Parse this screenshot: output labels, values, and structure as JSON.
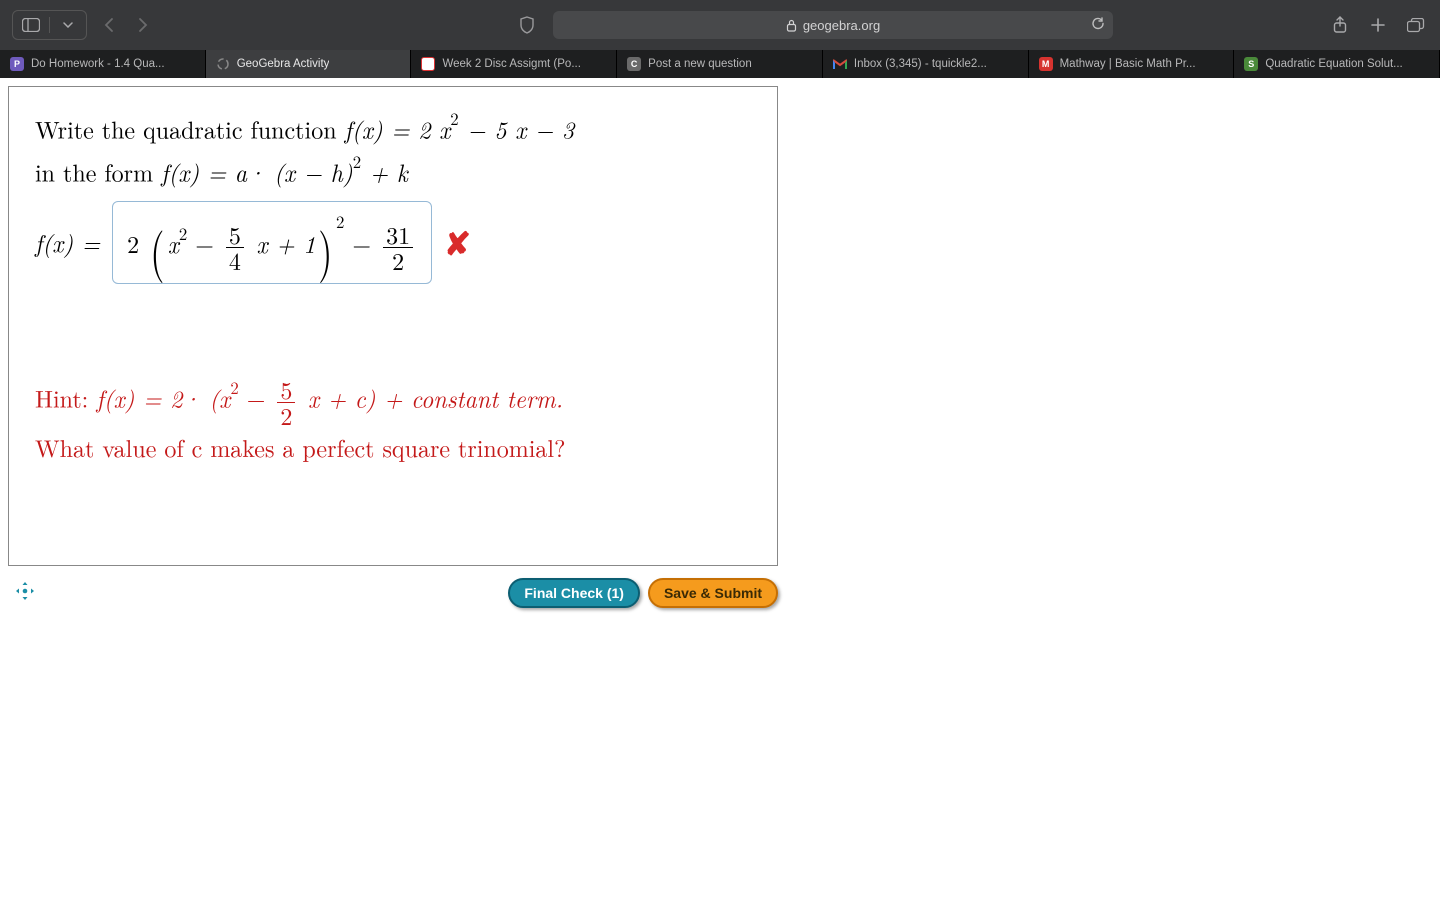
{
  "browser": {
    "url_host": "geogebra.org",
    "tabs": [
      {
        "label": "Do Homework - 1.4 Qua...",
        "favicon_letter": "P",
        "favicon_bg": "#6f5bbd",
        "active": false
      },
      {
        "label": "GeoGebra Activity",
        "favicon_letter": "",
        "favicon_bg": "transparent",
        "active": true,
        "spinner": true
      },
      {
        "label": "Week 2 Disc Assigmt (Po...",
        "favicon_letter": "",
        "favicon_bg": "#d33",
        "active": false,
        "icon_box": true
      },
      {
        "label": "Post a new question",
        "favicon_letter": "C",
        "favicon_bg": "#6a6a6a",
        "active": false
      },
      {
        "label": "Inbox (3,345) - tquickle2...",
        "favicon_letter": "M",
        "favicon_bg": "transparent",
        "gmail": true,
        "active": false
      },
      {
        "label": "Mathway | Basic Math Pr...",
        "favicon_letter": "M",
        "favicon_bg": "#d6332f",
        "active": false
      },
      {
        "label": "Quadratic Equation Solut...",
        "favicon_letter": "S",
        "favicon_bg": "#4a8a3a",
        "active": false
      }
    ]
  },
  "problem": {
    "line1_prefix": "Write the quadratic function ",
    "line1_fx": "f(x) = 2 x",
    "line1_sq": "2",
    "line1_rest": " − 5 x − 3",
    "line2_prefix": "in the form ",
    "line2_form_a": "f(x) = a· (x − h)",
    "line2_form_exp": "2",
    "line2_form_k": " + k",
    "answer": {
      "lhs": "f(x) = ",
      "coef": "2 ",
      "inner_pre": "x",
      "inner_sup": "2",
      "inner_mid": " − ",
      "frac1_num": "5",
      "frac1_den": "4",
      "inner_post": " x + 1",
      "outer_exp": "2",
      "minus": " − ",
      "frac2_num": "31",
      "frac2_den": "2"
    },
    "wrong_mark": "✘",
    "hint": {
      "prefix": "Hint: ",
      "fx": "f(x) = 2· (x",
      "sq": "2",
      "mid": " − ",
      "frac_num": "5",
      "frac_den": "2",
      "rest": " x + c)  +  constant term.",
      "q": "What value of c makes a perfect square trinomial?"
    }
  },
  "buttons": {
    "final_check": "Final Check (1)",
    "save_submit": "Save & Submit"
  },
  "colors": {
    "toolbar_bg": "#37383a",
    "tabstrip_bg": "#1e1f20",
    "hint_color": "#c41919",
    "answer_border": "#96b9d6",
    "wrong_color": "#d92b2b",
    "btn_teal_bg": "#1b8ea6",
    "btn_orange_bg": "#f59b1d"
  }
}
